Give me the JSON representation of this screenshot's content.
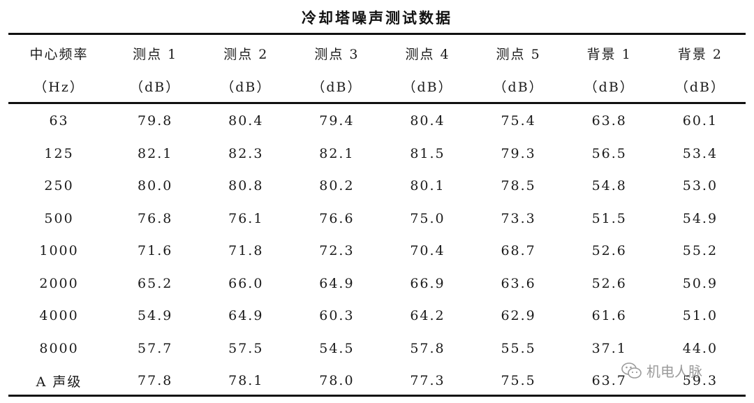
{
  "title": "冷却塔噪声测试数据",
  "columns": [
    {
      "name": "中心频率",
      "unit": "（Hz）"
    },
    {
      "name": "测点 1",
      "unit": "（dB）"
    },
    {
      "name": "测点 2",
      "unit": "（dB）"
    },
    {
      "name": "测点 3",
      "unit": "（dB）"
    },
    {
      "name": "测点 4",
      "unit": "（dB）"
    },
    {
      "name": "测点 5",
      "unit": "（dB）"
    },
    {
      "name": "背景 1",
      "unit": "（dB）"
    },
    {
      "name": "背景 2",
      "unit": "（dB）"
    }
  ],
  "rows": [
    [
      "63",
      "79.8",
      "80.4",
      "79.4",
      "80.4",
      "75.4",
      "63.8",
      "60.1"
    ],
    [
      "125",
      "82.1",
      "82.3",
      "82.1",
      "81.5",
      "79.3",
      "56.5",
      "53.4"
    ],
    [
      "250",
      "80.0",
      "80.8",
      "80.2",
      "80.1",
      "78.5",
      "54.8",
      "53.0"
    ],
    [
      "500",
      "76.8",
      "76.1",
      "76.6",
      "75.0",
      "73.3",
      "51.5",
      "54.9"
    ],
    [
      "1000",
      "71.6",
      "71.8",
      "72.3",
      "70.4",
      "68.7",
      "52.6",
      "55.2"
    ],
    [
      "2000",
      "65.2",
      "66.0",
      "64.9",
      "66.9",
      "63.6",
      "52.6",
      "50.9"
    ],
    [
      "4000",
      "54.9",
      "64.9",
      "60.3",
      "64.2",
      "62.9",
      "61.6",
      "51.0"
    ],
    [
      "8000",
      "57.7",
      "57.5",
      "54.5",
      "57.8",
      "55.5",
      "37.1",
      "44.0"
    ],
    [
      "A 声级",
      "77.8",
      "78.1",
      "78.0",
      "77.3",
      "75.5",
      "63.7",
      "59.3"
    ]
  ],
  "watermark": {
    "text": "机电人脉",
    "icon": "wechat-icon"
  }
}
